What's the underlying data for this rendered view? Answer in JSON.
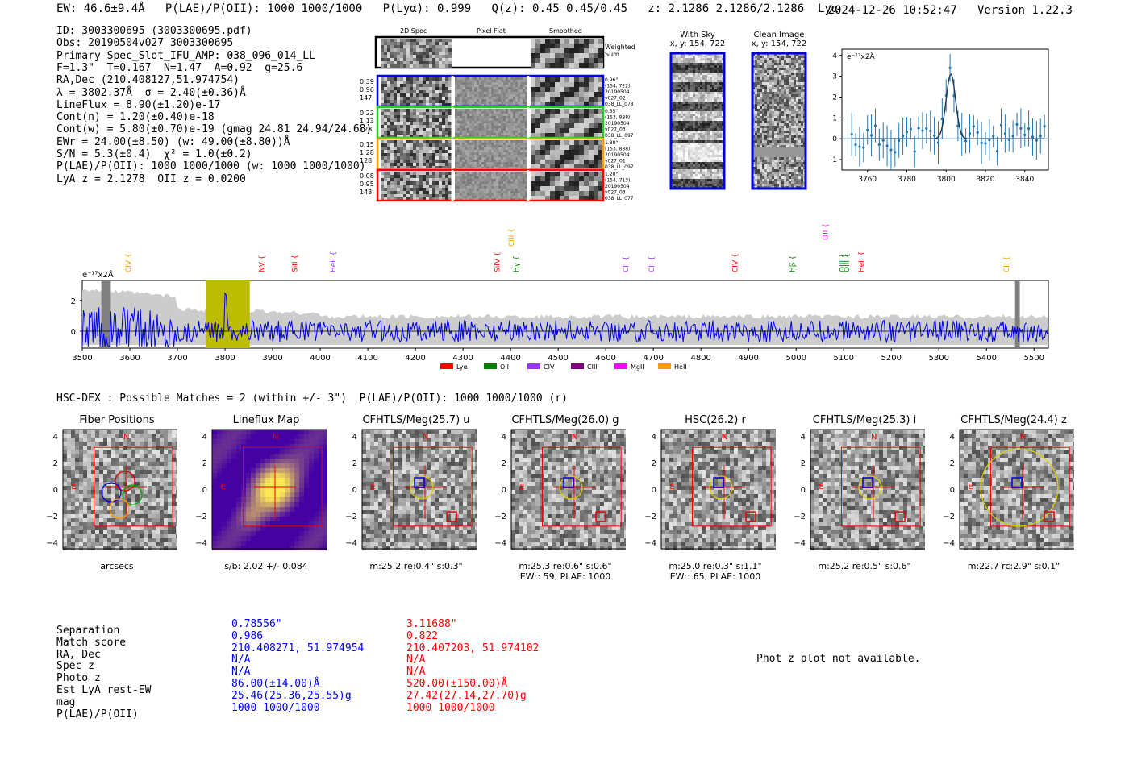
{
  "header": {
    "line": "EW: 46.6±9.4Å   P(LAE)/P(OII): 1000 1000/1000   P(Lyα): 0.999   Q(z): 0.45 0.45/0.45   z: 2.1286 2.1286/2.1286  Lyα",
    "timestamp": "2024-12-26 10:52:47",
    "version": "Version 1.22.3"
  },
  "info_lines": [
    "ID: 3003300695 (3003300695.pdf)",
    "Obs: 20190504v027_3003300695",
    "Primary Spec_Slot_IFU_AMP: 038_096_014_LL",
    "F=1.3\"  T=0.167  N=1.47  A=0.92  g=25.6",
    "RA,Dec (210.408127,51.974754)",
    "λ = 3802.37Å  σ = 2.40(±0.36)Å",
    "LineFlux = 8.90(±1.20)e-17",
    "Cont(n) = 1.20(±0.40)e-18",
    "Cont(w) = 5.80(±0.70)e-19 (gmag 24.81 24.94/24.68)",
    "EWr = 24.00(±8.50) (w: 49.00(±8.80))Å",
    "S/N = 5.3(±0.4)  χ² = 1.0(±0.2)",
    "P(LAE)/P(OII): 1000 1000/1000 (w: 1000 1000/1000)",
    "LyA z = 2.1278  OII z = 0.0200"
  ],
  "cutouts": {
    "col_headers": [
      "2D Spec",
      "Pixel Flat",
      "Smoothed"
    ],
    "weighted_label": "Weighted Sum",
    "rows": [
      {
        "left": [
          "0.39",
          "0.96",
          "147"
        ],
        "right": [
          "0.96\"",
          "(154, 722)",
          "20190504",
          "v027_02",
          "038_LL_078"
        ],
        "color": "#0000ff"
      },
      {
        "left": [
          "0.22",
          "1.13",
          "128"
        ],
        "right": [
          "0.55\"",
          "(153, 888)",
          "20190504",
          "v027_03",
          "038_LL_097"
        ],
        "color": "#22cc22"
      },
      {
        "left": [
          "0.15",
          "1.28",
          "128"
        ],
        "right": [
          "1.38\"",
          "(153, 888)",
          "20190504",
          "v027_01",
          "038_LL_097"
        ],
        "color": "#ff9900"
      },
      {
        "left": [
          "0.08",
          "0.95",
          "148"
        ],
        "right": [
          "1.20\"",
          "(154, 713)",
          "20190504",
          "v027_03",
          "038_LL_077"
        ],
        "color": "#ff0000"
      }
    ]
  },
  "sky": {
    "with_sky_title": "With Sky",
    "with_sky_coords": "x, y: 154, 722",
    "clean_title": "Clean Image",
    "clean_coords": "x, y: 154, 722"
  },
  "zoom_plot": {
    "unit_label": "e⁻¹⁷x2Å",
    "xticks": [
      "3760",
      "3780",
      "3800",
      "3820",
      "3840"
    ],
    "yticks": [
      "4",
      "3",
      "2",
      "1",
      "0",
      "−1"
    ]
  },
  "spectrum": {
    "unit_label": "e⁻¹⁷x2Å",
    "xticks": [
      "3500",
      "3600",
      "3700",
      "3800",
      "3900",
      "4000",
      "4100",
      "4200",
      "4300",
      "4400",
      "4500",
      "4600",
      "4700",
      "4800",
      "4900",
      "5000",
      "5100",
      "5200",
      "5300",
      "5400",
      "5500"
    ],
    "yticks": [
      "2",
      "0"
    ],
    "lines": [
      {
        "label": "CIV",
        "color": "#ff9900"
      },
      {
        "label": "NV",
        "color": "#ff0000"
      },
      {
        "label": "SiII",
        "color": "#ff0000"
      },
      {
        "label": "HeII",
        "color": "#9933ff"
      },
      {
        "label": "SiIV",
        "color": "#ff0000"
      },
      {
        "label": "Hγ",
        "color": "#008000"
      },
      {
        "label": "CIII",
        "color": "#ff9900"
      },
      {
        "label": "CII",
        "color": "#9933ff"
      },
      {
        "label": "CII",
        "color": "#9933ff"
      },
      {
        "label": "CIV",
        "color": "#ff0000"
      },
      {
        "label": "Hβ",
        "color": "#008000"
      },
      {
        "label": "OIII",
        "color": "#008000"
      },
      {
        "label": "OII",
        "color": "#ff00ff"
      },
      {
        "label": "OIII",
        "color": "#008000"
      },
      {
        "label": "HeII",
        "color": "#ff0000"
      },
      {
        "label": "CII",
        "color": "#ff9900"
      }
    ],
    "legend": [
      {
        "label": "Lyα",
        "color": "#ff0000"
      },
      {
        "label": "OII",
        "color": "#008000"
      },
      {
        "label": "CIV",
        "color": "#9933ff"
      },
      {
        "label": "CIII",
        "color": "#800080"
      },
      {
        "label": "MgII",
        "color": "#ff00ff"
      },
      {
        "label": "HeII",
        "color": "#ff9900"
      }
    ]
  },
  "hsc": {
    "title": "HSC-DEX : Possible Matches = 2 (within +/- 3\")  P(LAE)/P(OII): 1000 1000/1000 (r)",
    "panels": [
      {
        "title": "Fiber Positions",
        "caption1": "arcsecs",
        "caption2": ""
      },
      {
        "title": "Lineflux Map",
        "caption1": "s/b: 2.02 +/- 0.084",
        "caption2": ""
      },
      {
        "title": "CFHTLS/Meg(25.7) u",
        "caption1": "m:25.2  re:0.4\"  s:0.3\"",
        "caption2": ""
      },
      {
        "title": "CFHTLS/Meg(26.0) g",
        "caption1": "m:25.3  re:0.6\"  s:0.6\"",
        "caption2": "EWr: 59, PLAE: 1000"
      },
      {
        "title": "HSC(26.2) r",
        "caption1": "m:25.0  re:0.3\"  s:1.1\"",
        "caption2": "EWr: 65, PLAE: 1000"
      },
      {
        "title": "CFHTLS/Meg(25.3) i",
        "caption1": "m:25.2  re:0.5\"  s:0.6\"",
        "caption2": ""
      },
      {
        "title": "CFHTLS/Meg(24.4) z",
        "caption1": "m:22.7  rc:2.9\"  s:0.1\"",
        "caption2": ""
      }
    ],
    "ticks": [
      "4",
      "2",
      "0",
      "−2",
      "−4"
    ],
    "north": "N",
    "east": "E"
  },
  "matches": {
    "labels": [
      "Separation",
      "Match score",
      "RA, Dec",
      "Spec z",
      "Photo z",
      "Est LyA rest-EW",
      "mag",
      "P(LAE)/P(OII)"
    ],
    "blue": [
      "0.78556\"",
      "0.986",
      "210.408271, 51.974954",
      "N/A",
      "N/A",
      "86.00(±14.00)Å",
      "25.46(25.36,25.55)g",
      "1000 1000/1000"
    ],
    "red": [
      "3.11688\"",
      "0.822",
      "210.407203, 51.974102",
      "N/A",
      "N/A",
      "520.00(±150.00)Å",
      "27.42(27.14,27.70)g",
      "1000 1000/1000"
    ]
  },
  "photz_message": "Phot z plot not available."
}
